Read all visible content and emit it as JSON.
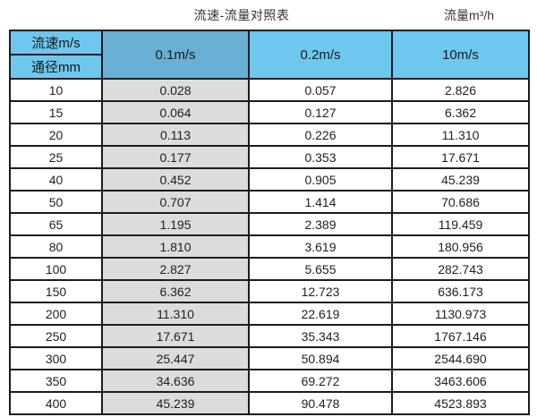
{
  "titles": {
    "left": "流速-流量对照表",
    "right": "流量m³/h"
  },
  "table": {
    "corner": {
      "top": "流速m/s",
      "bottom": "通径mm"
    },
    "velocity_columns": [
      "0.1m/s",
      "0.2m/s",
      "10m/s"
    ],
    "rows": [
      {
        "dn": "10",
        "values": [
          "0.028",
          "0.057",
          "2.826"
        ]
      },
      {
        "dn": "15",
        "values": [
          "0.064",
          "0.127",
          "6.362"
        ]
      },
      {
        "dn": "20",
        "values": [
          "0.113",
          "0.226",
          "11.310"
        ]
      },
      {
        "dn": "25",
        "values": [
          "0.177",
          "0.353",
          "17.671"
        ]
      },
      {
        "dn": "40",
        "values": [
          "0.452",
          "0.905",
          "45.239"
        ]
      },
      {
        "dn": "50",
        "values": [
          "0.707",
          "1.414",
          "70.686"
        ]
      },
      {
        "dn": "65",
        "values": [
          "1.195",
          "2.389",
          "119.459"
        ]
      },
      {
        "dn": "80",
        "values": [
          "1.810",
          "3.619",
          "180.956"
        ]
      },
      {
        "dn": "100",
        "values": [
          "2.827",
          "5.655",
          "282.743"
        ]
      },
      {
        "dn": "150",
        "values": [
          "6.362",
          "12.723",
          "636.173"
        ]
      },
      {
        "dn": "200",
        "values": [
          "11.310",
          "22.619",
          "1130.973"
        ]
      },
      {
        "dn": "250",
        "values": [
          "17.671",
          "35.343",
          "1767.146"
        ]
      },
      {
        "dn": "300",
        "values": [
          "25.447",
          "50.894",
          "2544.690"
        ]
      },
      {
        "dn": "350",
        "values": [
          "34.636",
          "69.272",
          "3463.606"
        ]
      },
      {
        "dn": "400",
        "values": [
          "45.239",
          "90.478",
          "4523.893"
        ]
      }
    ]
  },
  "colors": {
    "header_blue": "#6ec7ee",
    "header_blue_dark": "#69b0d4",
    "column_gray": "#dcdcdc",
    "border": "#1c1c1c",
    "background": "#ffffff",
    "text": "#1f1f1f"
  }
}
